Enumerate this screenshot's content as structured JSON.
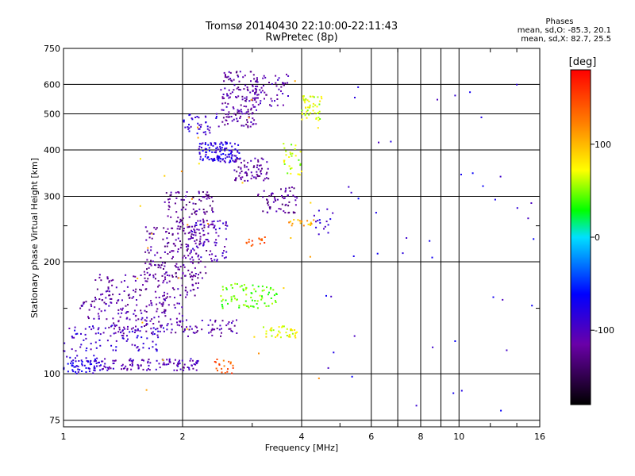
{
  "chart_data": {
    "type": "scatter",
    "title": "Tromsø 20140430 22:10:00-22:11:43",
    "subtitle": "RwPretec (8p)",
    "xlabel": "Frequency [MHz]",
    "ylabel": "Stationary phase Virtual Height [km]",
    "x_scale": "log",
    "y_scale": "log",
    "xlim": [
      1,
      16
    ],
    "ylim": [
      72,
      750
    ],
    "x_ticks": [
      1,
      2,
      4,
      6,
      8,
      10,
      16
    ],
    "x_tick_labels": [
      "1",
      "2",
      "4",
      "6",
      "8",
      "10",
      "16"
    ],
    "y_ticks": [
      75,
      100,
      200,
      300,
      400,
      500,
      600,
      750
    ],
    "y_tick_labels": [
      "75",
      "100",
      "200",
      "300",
      "400",
      "500",
      "600",
      "750"
    ],
    "grid": true,
    "colorbar": {
      "label": "[deg]",
      "range": [
        -180,
        180
      ],
      "ticks": [
        100,
        0,
        -100
      ],
      "tick_labels": [
        "100",
        "0",
        "-100"
      ]
    },
    "stats": {
      "heading": "Phases",
      "line_o": "mean, sd,O: -85.3, 20.1",
      "line_x": "mean, sd,X: 82.7, 25.5"
    },
    "clusters": [
      {
        "f": [
          1.0,
          1.25
        ],
        "h": [
          100,
          112
        ],
        "phase": -80,
        "n": 70
      },
      {
        "f": [
          1.25,
          2.2
        ],
        "h": [
          102,
          110
        ],
        "phase": -105,
        "n": 110
      },
      {
        "f": [
          1.0,
          1.8
        ],
        "h": [
          115,
          135
        ],
        "phase": -90,
        "n": 90
      },
      {
        "f": [
          1.3,
          2.8
        ],
        "h": [
          126,
          140
        ],
        "phase": -110,
        "n": 110
      },
      {
        "f": [
          1.1,
          2.0
        ],
        "h": [
          140,
          160
        ],
        "phase": -112,
        "n": 110
      },
      {
        "f": [
          1.2,
          2.2
        ],
        "h": [
          160,
          185
        ],
        "phase": -115,
        "n": 100
      },
      {
        "f": [
          1.6,
          2.3
        ],
        "h": [
          180,
          250
        ],
        "phase": -118,
        "n": 180
      },
      {
        "f": [
          1.8,
          2.4
        ],
        "h": [
          240,
          310
        ],
        "phase": -120,
        "n": 90
      },
      {
        "f": [
          2.1,
          2.6
        ],
        "h": [
          200,
          260
        ],
        "phase": -100,
        "n": 70
      },
      {
        "f": [
          2.2,
          2.8
        ],
        "h": [
          370,
          420
        ],
        "phase": -80,
        "n": 120
      },
      {
        "f": [
          2.0,
          2.5
        ],
        "h": [
          440,
          500
        ],
        "phase": -90,
        "n": 40
      },
      {
        "f": [
          2.5,
          3.1
        ],
        "h": [
          460,
          650
        ],
        "phase": -115,
        "n": 150
      },
      {
        "f": [
          2.7,
          3.3
        ],
        "h": [
          330,
          380
        ],
        "phase": -115,
        "n": 70
      },
      {
        "f": [
          3.1,
          3.9
        ],
        "h": [
          270,
          320
        ],
        "phase": -120,
        "n": 60
      },
      {
        "f": [
          3.0,
          3.7
        ],
        "h": [
          520,
          640
        ],
        "phase": -110,
        "n": 60
      },
      {
        "f": [
          2.5,
          3.5
        ],
        "h": [
          150,
          175
        ],
        "phase": 45,
        "n": 80
      },
      {
        "f": [
          3.2,
          3.9
        ],
        "h": [
          125,
          135
        ],
        "phase": 70,
        "n": 40
      },
      {
        "f": [
          3.6,
          4.0
        ],
        "h": [
          340,
          420
        ],
        "phase": 60,
        "n": 30
      },
      {
        "f": [
          4.0,
          4.5
        ],
        "h": [
          480,
          560
        ],
        "phase": 65,
        "n": 50
      },
      {
        "f": [
          2.4,
          2.7
        ],
        "h": [
          100,
          110
        ],
        "phase": 140,
        "n": 20
      },
      {
        "f": [
          2.9,
          3.3
        ],
        "h": [
          220,
          240
        ],
        "phase": 140,
        "n": 15
      },
      {
        "f": [
          3.7,
          4.3
        ],
        "h": [
          250,
          260
        ],
        "phase": 105,
        "n": 20
      },
      {
        "f": [
          4.3,
          4.8
        ],
        "h": [
          235,
          290
        ],
        "phase": -90,
        "n": 15
      },
      {
        "f": [
          4.5,
          16
        ],
        "h": [
          75,
          700
        ],
        "phase": -80,
        "n": 45
      },
      {
        "f": [
          1.5,
          4.5
        ],
        "h": [
          75,
          700
        ],
        "phase": 100,
        "n": 30
      }
    ]
  }
}
